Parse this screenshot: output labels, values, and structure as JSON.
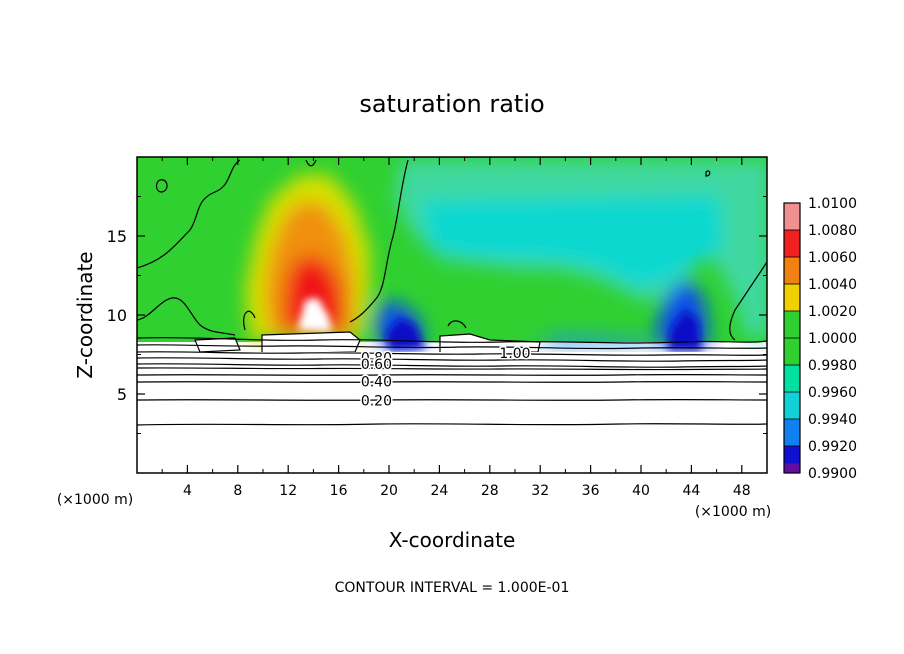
{
  "chart_data": {
    "type": "heatmap",
    "title": "saturation ratio",
    "xlabel": "X-coordinate",
    "ylabel": "Z-coordinate",
    "x_unit_label": "(×1000 m)",
    "x_unit_label_right": "(×1000 m)",
    "footer": "CONTOUR INTERVAL = 1.000E-01",
    "xlim": [
      0,
      50
    ],
    "ylim": [
      0,
      20
    ],
    "x_ticks": [
      "4",
      "8",
      "12",
      "16",
      "20",
      "24",
      "28",
      "32",
      "36",
      "40",
      "44",
      "48"
    ],
    "x_tick_values": [
      4,
      8,
      12,
      16,
      20,
      24,
      28,
      32,
      36,
      40,
      44,
      48
    ],
    "y_ticks": [
      "5",
      "10",
      "15"
    ],
    "y_tick_values": [
      5,
      10,
      15
    ],
    "colorbar": {
      "labels": [
        "1.0100",
        "1.0080",
        "1.0060",
        "1.0040",
        "1.0020",
        "1.0000",
        "0.9980",
        "0.9960",
        "0.9940",
        "0.9920",
        "0.9900"
      ],
      "values": [
        1.01,
        1.008,
        1.006,
        1.004,
        1.002,
        1.0,
        0.998,
        0.996,
        0.994,
        0.992,
        0.99
      ],
      "colors": [
        "#f09090",
        "#f02020",
        "#f08010",
        "#f0d000",
        "#a0e000",
        "#30d030",
        "#00e0a0",
        "#10d0d8",
        "#1080f0",
        "#1010d0",
        "#6010a0"
      ]
    },
    "contour_labels": [
      {
        "text": "0.80",
        "x": 19.0,
        "y": 7.3
      },
      {
        "text": "0.60",
        "x": 19.0,
        "y": 6.9
      },
      {
        "text": "0.40",
        "x": 19.0,
        "y": 5.8
      },
      {
        "text": "0.20",
        "x": 19.0,
        "y": 4.6
      },
      {
        "text": "1.00",
        "x": 30.0,
        "y": 7.6
      }
    ],
    "subsaturated_contours_z": [
      7.0,
      6.6,
      6.3,
      5.9,
      5.5,
      5.0,
      4.6,
      3.2
    ]
  }
}
